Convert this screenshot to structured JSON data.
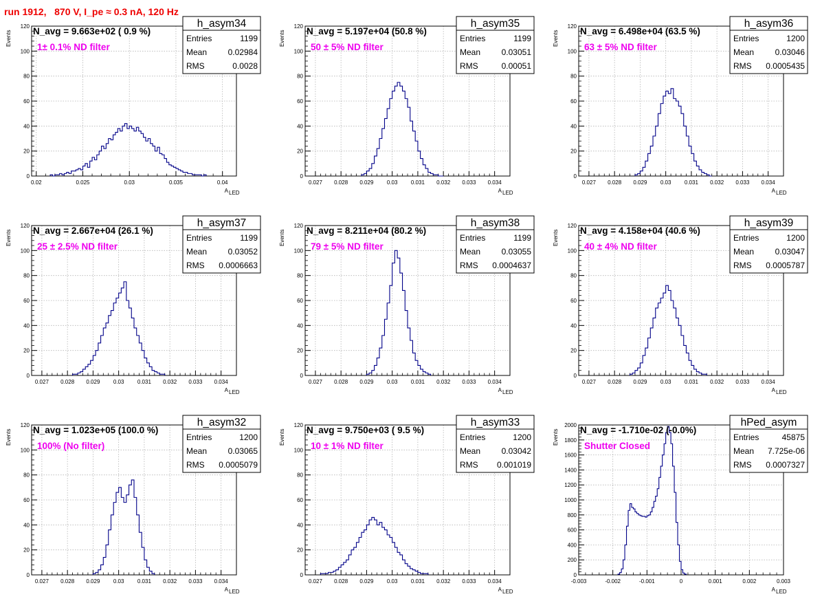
{
  "title": "run 1912,   870 V, I_pe ≈ 0.3 nA, 120 Hz",
  "colors": {
    "title": "#ee0000",
    "histogram_line": "#000088",
    "filter_text": "#ee00ee",
    "grid": "#b3b3b3"
  },
  "axis_labels": {
    "x": "A",
    "x_sub": "LED",
    "y": "Events"
  },
  "stat_labels": {
    "entries": "Entries",
    "mean": "Mean",
    "rms": "RMS"
  },
  "chart_data": [
    {
      "type": "histogram",
      "name": "h_asym34",
      "navg": "N_avg = 9.663e+02 ( 0.9 %)",
      "filter_label": "1± 0.1% ND filter",
      "entries": "1199",
      "mean": "0.02984",
      "rms": "0.0028",
      "xlim": [
        0.0195,
        0.0415
      ],
      "ylim": [
        0,
        120
      ],
      "xticks": [
        0.02,
        0.025,
        0.03,
        0.035,
        0.04
      ],
      "xtick_labels": [
        "0.02",
        "0.025",
        "0.03",
        "0.035",
        "0.04"
      ],
      "yticks": [
        0,
        20,
        40,
        60,
        80,
        100,
        120
      ],
      "ytick_labels": [
        "0",
        "20",
        "40",
        "60",
        "80",
        "100",
        "120"
      ],
      "grid": true,
      "bins_x0": 0.0215,
      "bin_width": 0.00025,
      "counts": [
        1,
        0,
        1,
        1,
        2,
        1,
        2,
        3,
        2,
        4,
        4,
        5,
        6,
        5,
        8,
        10,
        7,
        12,
        15,
        13,
        17,
        20,
        24,
        22,
        26,
        30,
        29,
        33,
        35,
        38,
        36,
        40,
        42,
        38,
        40,
        38,
        36,
        39,
        36,
        34,
        31,
        28,
        30,
        26,
        24,
        20,
        23,
        18,
        17,
        14,
        11,
        9,
        8,
        7,
        6,
        5,
        4,
        3,
        3,
        2,
        2,
        1,
        1,
        1,
        1,
        0,
        1
      ]
    },
    {
      "type": "histogram",
      "name": "h_asym35",
      "navg": "N_avg = 5.197e+04 (50.8 %)",
      "filter_label": "50 ± 5% ND filter",
      "entries": "1199",
      "mean": "0.03051",
      "rms": "0.00051",
      "xlim": [
        0.0266,
        0.0346
      ],
      "ylim": [
        0,
        120
      ],
      "xticks": [
        0.027,
        0.028,
        0.029,
        0.03,
        0.031,
        0.032,
        0.033,
        0.034
      ],
      "xtick_labels": [
        "0.027",
        "0.028",
        "0.029",
        "0.03",
        "0.031",
        "0.032",
        "0.033",
        "0.034"
      ],
      "yticks": [
        0,
        20,
        40,
        60,
        80,
        100,
        120
      ],
      "ytick_labels": [
        "0",
        "20",
        "40",
        "60",
        "80",
        "100",
        "120"
      ],
      "grid": true,
      "bins_x0": 0.0288,
      "bin_width": 0.0001,
      "counts": [
        1,
        2,
        4,
        6,
        10,
        16,
        22,
        30,
        38,
        46,
        54,
        62,
        68,
        72,
        75,
        72,
        68,
        62,
        55,
        44,
        36,
        28,
        20,
        14,
        9,
        6,
        3,
        2,
        1,
        1,
        0,
        0
      ]
    },
    {
      "type": "histogram",
      "name": "h_asym36",
      "navg": "N_avg = 6.498e+04 (63.5 %)",
      "filter_label": "63 ± 5% ND filter",
      "entries": "1200",
      "mean": "0.03046",
      "rms": "0.0005435",
      "xlim": [
        0.0266,
        0.0346
      ],
      "ylim": [
        0,
        120
      ],
      "xticks": [
        0.027,
        0.028,
        0.029,
        0.03,
        0.031,
        0.032,
        0.033,
        0.034
      ],
      "xtick_labels": [
        "0.027",
        "0.028",
        "0.029",
        "0.03",
        "0.031",
        "0.032",
        "0.033",
        "0.034"
      ],
      "yticks": [
        0,
        20,
        40,
        60,
        80,
        100,
        120
      ],
      "ytick_labels": [
        "0",
        "20",
        "40",
        "60",
        "80",
        "100",
        "120"
      ],
      "grid": true,
      "bins_x0": 0.0288,
      "bin_width": 0.0001,
      "counts": [
        1,
        2,
        4,
        7,
        12,
        18,
        24,
        32,
        40,
        50,
        58,
        64,
        68,
        66,
        70,
        62,
        60,
        56,
        50,
        40,
        32,
        24,
        18,
        12,
        8,
        5,
        3,
        2,
        1,
        0
      ]
    },
    {
      "type": "histogram",
      "name": "h_asym37",
      "navg": "N_avg = 2.667e+04 (26.1 %)",
      "filter_label": "25 ± 2.5% ND filter",
      "entries": "1199",
      "mean": "0.03052",
      "rms": "0.0006663",
      "xlim": [
        0.0266,
        0.0346
      ],
      "ylim": [
        0,
        120
      ],
      "xticks": [
        0.027,
        0.028,
        0.029,
        0.03,
        0.031,
        0.032,
        0.033,
        0.034
      ],
      "xtick_labels": [
        "0.027",
        "0.028",
        "0.029",
        "0.03",
        "0.031",
        "0.032",
        "0.033",
        "0.034"
      ],
      "yticks": [
        0,
        20,
        40,
        60,
        80,
        100,
        120
      ],
      "ytick_labels": [
        "0",
        "20",
        "40",
        "60",
        "80",
        "100",
        "120"
      ],
      "grid": true,
      "bins_x0": 0.0282,
      "bin_width": 0.0001,
      "counts": [
        1,
        1,
        2,
        3,
        5,
        7,
        9,
        12,
        16,
        20,
        26,
        32,
        38,
        42,
        48,
        52,
        58,
        62,
        66,
        70,
        75,
        60,
        54,
        46,
        38,
        32,
        26,
        20,
        14,
        10,
        7,
        4,
        3,
        2,
        1,
        1
      ]
    },
    {
      "type": "histogram",
      "name": "h_asym38",
      "navg": "N_avg = 8.211e+04 (80.2 %)",
      "filter_label": "79 ± 5% ND filter",
      "entries": "1199",
      "mean": "0.03055",
      "rms": "0.0004637",
      "xlim": [
        0.0266,
        0.0346
      ],
      "ylim": [
        0,
        120
      ],
      "xticks": [
        0.027,
        0.028,
        0.029,
        0.03,
        0.031,
        0.032,
        0.033,
        0.034
      ],
      "xtick_labels": [
        "0.027",
        "0.028",
        "0.029",
        "0.03",
        "0.031",
        "0.032",
        "0.033",
        "0.034"
      ],
      "yticks": [
        0,
        20,
        40,
        60,
        80,
        100,
        120
      ],
      "ytick_labels": [
        "0",
        "20",
        "40",
        "60",
        "80",
        "100",
        "120"
      ],
      "grid": true,
      "bins_x0": 0.029,
      "bin_width": 0.0001,
      "counts": [
        1,
        2,
        4,
        8,
        14,
        22,
        32,
        45,
        58,
        72,
        90,
        100,
        94,
        82,
        68,
        52,
        38,
        28,
        18,
        12,
        8,
        5,
        3,
        2,
        1
      ]
    },
    {
      "type": "histogram",
      "name": "h_asym39",
      "navg": "N_avg = 4.158e+04 (40.6 %)",
      "filter_label": "40 ± 4% ND filter",
      "entries": "1200",
      "mean": "0.03047",
      "rms": "0.0005787",
      "xlim": [
        0.0266,
        0.0346
      ],
      "ylim": [
        0,
        120
      ],
      "xticks": [
        0.027,
        0.028,
        0.029,
        0.03,
        0.031,
        0.032,
        0.033,
        0.034
      ],
      "xtick_labels": [
        "0.027",
        "0.028",
        "0.029",
        "0.03",
        "0.031",
        "0.032",
        "0.033",
        "0.034"
      ],
      "yticks": [
        0,
        20,
        40,
        60,
        80,
        100,
        120
      ],
      "ytick_labels": [
        "0",
        "20",
        "40",
        "60",
        "80",
        "100",
        "120"
      ],
      "grid": true,
      "bins_x0": 0.0286,
      "bin_width": 0.0001,
      "counts": [
        1,
        2,
        4,
        6,
        10,
        16,
        22,
        30,
        38,
        46,
        54,
        58,
        62,
        66,
        72,
        68,
        60,
        54,
        46,
        40,
        32,
        24,
        18,
        12,
        8,
        5,
        3,
        2,
        1,
        1
      ]
    },
    {
      "type": "histogram",
      "name": "h_asym32",
      "navg": "N_avg = 1.023e+05 (100.0 %)",
      "filter_label": "100% (No filter)",
      "entries": "1200",
      "mean": "0.03065",
      "rms": "0.0005079",
      "xlim": [
        0.0266,
        0.0346
      ],
      "ylim": [
        0,
        120
      ],
      "xticks": [
        0.027,
        0.028,
        0.029,
        0.03,
        0.031,
        0.032,
        0.033,
        0.034
      ],
      "xtick_labels": [
        "0.027",
        "0.028",
        "0.029",
        "0.03",
        "0.031",
        "0.032",
        "0.033",
        "0.034"
      ],
      "yticks": [
        0,
        20,
        40,
        60,
        80,
        100,
        120
      ],
      "ytick_labels": [
        "0",
        "20",
        "40",
        "60",
        "80",
        "100",
        "120"
      ],
      "grid": true,
      "bins_x0": 0.029,
      "bin_width": 0.0001,
      "counts": [
        1,
        2,
        4,
        8,
        14,
        24,
        36,
        48,
        58,
        66,
        70,
        62,
        58,
        64,
        72,
        76,
        62,
        48,
        34,
        22,
        12,
        6,
        3,
        1
      ]
    },
    {
      "type": "histogram",
      "name": "h_asym33",
      "navg": "N_avg = 9.750e+03 ( 9.5 %)",
      "filter_label": "10 ± 1% ND filter",
      "entries": "1200",
      "mean": "0.03042",
      "rms": "0.001019",
      "xlim": [
        0.0266,
        0.0346
      ],
      "ylim": [
        0,
        120
      ],
      "xticks": [
        0.027,
        0.028,
        0.029,
        0.03,
        0.031,
        0.032,
        0.033,
        0.034
      ],
      "xtick_labels": [
        "0.027",
        "0.028",
        "0.029",
        "0.03",
        "0.031",
        "0.032",
        "0.033",
        "0.034"
      ],
      "yticks": [
        0,
        20,
        40,
        60,
        80,
        100,
        120
      ],
      "ytick_labels": [
        "0",
        "20",
        "40",
        "60",
        "80",
        "100",
        "120"
      ],
      "grid": true,
      "bins_x0": 0.0272,
      "bin_width": 0.0001,
      "counts": [
        1,
        1,
        1,
        2,
        2,
        3,
        4,
        6,
        8,
        10,
        12,
        16,
        20,
        22,
        26,
        30,
        34,
        36,
        40,
        44,
        46,
        44,
        40,
        42,
        38,
        36,
        32,
        30,
        26,
        22,
        18,
        16,
        12,
        9,
        7,
        5,
        4,
        3,
        2,
        1,
        1,
        1
      ]
    },
    {
      "type": "histogram",
      "name": "hPed_asym",
      "navg": "N_avg = -1.710e-02 (-0.0%)",
      "filter_label": "Shutter Closed",
      "entries": "45875",
      "mean": "7.725e-06",
      "rms": "0.0007327",
      "xlim": [
        -0.003,
        0.003
      ],
      "ylim": [
        0,
        2000
      ],
      "xticks": [
        -0.003,
        -0.002,
        -0.001,
        0,
        0.001,
        0.002,
        0.003
      ],
      "xtick_labels": [
        "-0.003",
        "-0.002",
        "-0.001",
        "0",
        "0.001",
        "0.002",
        "0.003"
      ],
      "yticks": [
        0,
        200,
        400,
        600,
        800,
        1000,
        1200,
        1400,
        1600,
        1800,
        2000
      ],
      "ytick_labels": [
        "0",
        "200",
        "400",
        "600",
        "800",
        "1000",
        "1200",
        "1400",
        "1600",
        "1800",
        "2000"
      ],
      "grid": true,
      "bins_x0": -0.00185,
      "bin_width": 5e-05,
      "counts": [
        10,
        30,
        80,
        200,
        400,
        650,
        860,
        950,
        900,
        880,
        840,
        820,
        800,
        790,
        780,
        780,
        770,
        790,
        800,
        840,
        900,
        980,
        1050,
        1150,
        1300,
        1450,
        1600,
        1750,
        1900,
        1980,
        1900,
        1750,
        1450,
        1100,
        700,
        400,
        180,
        70,
        25,
        10
      ]
    }
  ]
}
